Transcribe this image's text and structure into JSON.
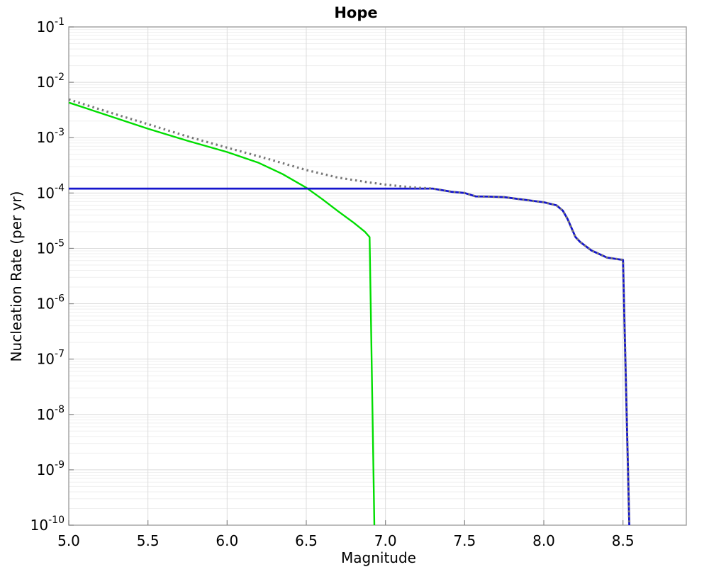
{
  "chart_data": {
    "type": "line",
    "title": "Hope",
    "xlabel": "Magnitude",
    "ylabel": "Nucleation Rate (per yr)",
    "x_range": [
      5.0,
      8.9
    ],
    "y_log_exp_range": [
      -1,
      -10
    ],
    "x_ticks": [
      5.0,
      5.5,
      6.0,
      6.5,
      7.0,
      7.5,
      8.0,
      8.5
    ],
    "x_tick_labels": [
      "5.0",
      "5.5",
      "6.0",
      "6.5",
      "7.0",
      "7.5",
      "8.0",
      "8.5"
    ],
    "y_ticks_exp": [
      -1,
      -2,
      -3,
      -4,
      -5,
      -6,
      -7,
      -8,
      -9,
      -10
    ],
    "grid": true,
    "legend": false,
    "colors": {
      "grid_major": "#dcdcdc",
      "grid_minor": "#efefef",
      "frame": "#a0a0a0",
      "tick": "#888888",
      "text": "#000000"
    },
    "series": [
      {
        "name": "green-solid-curve",
        "color": "#00dd00",
        "style": "solid",
        "width": 2.4,
        "points": [
          [
            5.0,
            0.0043
          ],
          [
            5.25,
            0.0025
          ],
          [
            5.5,
            0.00145
          ],
          [
            5.75,
            0.00088
          ],
          [
            6.0,
            0.00055
          ],
          [
            6.2,
            0.00035
          ],
          [
            6.35,
            0.00022
          ],
          [
            6.5,
            0.000125
          ],
          [
            6.6,
            7.8e-05
          ],
          [
            6.7,
            4.7e-05
          ],
          [
            6.8,
            2.9e-05
          ],
          [
            6.87,
            2e-05
          ],
          [
            6.9,
            1.6e-05
          ],
          [
            6.93,
            1e-10
          ]
        ]
      },
      {
        "name": "blue-solid-curve",
        "color": "#1515cd",
        "style": "solid",
        "width": 2.8,
        "points": [
          [
            5.0,
            0.00012
          ],
          [
            7.3,
            0.00012
          ],
          [
            7.42,
            0.000105
          ],
          [
            7.5,
            0.0001
          ],
          [
            7.57,
            8.7e-05
          ],
          [
            7.65,
            8.6e-05
          ],
          [
            7.75,
            8.4e-05
          ],
          [
            7.9,
            7.4e-05
          ],
          [
            8.0,
            6.8e-05
          ],
          [
            8.08,
            6e-05
          ],
          [
            8.12,
            4.8e-05
          ],
          [
            8.15,
            3.4e-05
          ],
          [
            8.2,
            1.6e-05
          ],
          [
            8.23,
            1.3e-05
          ],
          [
            8.3,
            9.2e-06
          ],
          [
            8.4,
            6.8e-06
          ],
          [
            8.5,
            6.2e-06
          ],
          [
            8.54,
            1e-10
          ]
        ]
      },
      {
        "name": "gray-dotted-curve",
        "color": "#787878",
        "style": "dotted",
        "width": 3.2,
        "points": [
          [
            5.0,
            0.0049
          ],
          [
            5.25,
            0.0029
          ],
          [
            5.5,
            0.00175
          ],
          [
            5.75,
            0.00105
          ],
          [
            6.0,
            0.00066
          ],
          [
            6.25,
            0.00042
          ],
          [
            6.5,
            0.00026
          ],
          [
            6.7,
            0.00019
          ],
          [
            6.9,
            0.000155
          ],
          [
            7.0,
            0.000142
          ],
          [
            7.1,
            0.000132
          ],
          [
            7.2,
            0.000125
          ],
          [
            7.3,
            0.00012
          ],
          [
            7.42,
            0.000105
          ],
          [
            7.5,
            0.0001
          ],
          [
            7.57,
            8.7e-05
          ],
          [
            7.65,
            8.6e-05
          ],
          [
            7.75,
            8.4e-05
          ],
          [
            7.9,
            7.4e-05
          ],
          [
            8.0,
            6.8e-05
          ],
          [
            8.08,
            6e-05
          ],
          [
            8.12,
            4.8e-05
          ],
          [
            8.15,
            3.4e-05
          ],
          [
            8.2,
            1.6e-05
          ],
          [
            8.23,
            1.3e-05
          ],
          [
            8.3,
            9.2e-06
          ],
          [
            8.4,
            6.8e-06
          ],
          [
            8.5,
            6.2e-06
          ],
          [
            8.54,
            1e-10
          ]
        ]
      }
    ]
  }
}
